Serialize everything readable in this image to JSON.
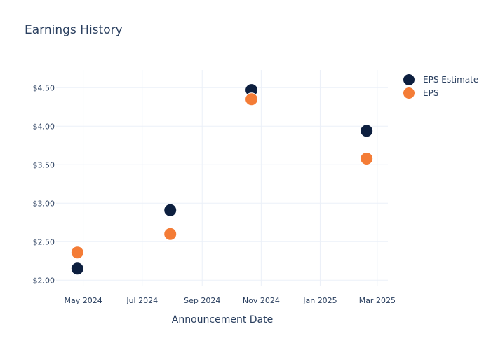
{
  "chart_data": {
    "type": "scatter",
    "title": "Earnings History",
    "xlabel": "Announcement Date",
    "ylabel": "",
    "x_ticks": [
      "May 2024",
      "Jul 2024",
      "Sep 2024",
      "Nov 2024",
      "Jan 2025",
      "Mar 2025"
    ],
    "x_tick_dates": [
      "2024-05-01",
      "2024-07-01",
      "2024-09-01",
      "2024-11-01",
      "2025-01-01",
      "2025-03-01"
    ],
    "xlim": [
      "2024-04-03",
      "2025-03-12"
    ],
    "y_ticks": [
      "$2.00",
      "$2.50",
      "$3.00",
      "$3.50",
      "$4.00",
      "$4.50"
    ],
    "y_tick_values": [
      2.0,
      2.5,
      3.0,
      3.5,
      4.0,
      4.5
    ],
    "ylim": [
      1.93,
      4.73
    ],
    "grid": true,
    "legend_position": "top-right",
    "x": [
      "2024-04-25",
      "2024-07-30",
      "2024-10-22",
      "2025-02-18"
    ],
    "series": [
      {
        "name": "EPS Estimate",
        "color": "#0d1f3f",
        "values": [
          2.15,
          2.91,
          4.47,
          3.94
        ]
      },
      {
        "name": "EPS",
        "color": "#f47c36",
        "values": [
          2.36,
          2.6,
          4.35,
          3.58
        ]
      }
    ]
  }
}
